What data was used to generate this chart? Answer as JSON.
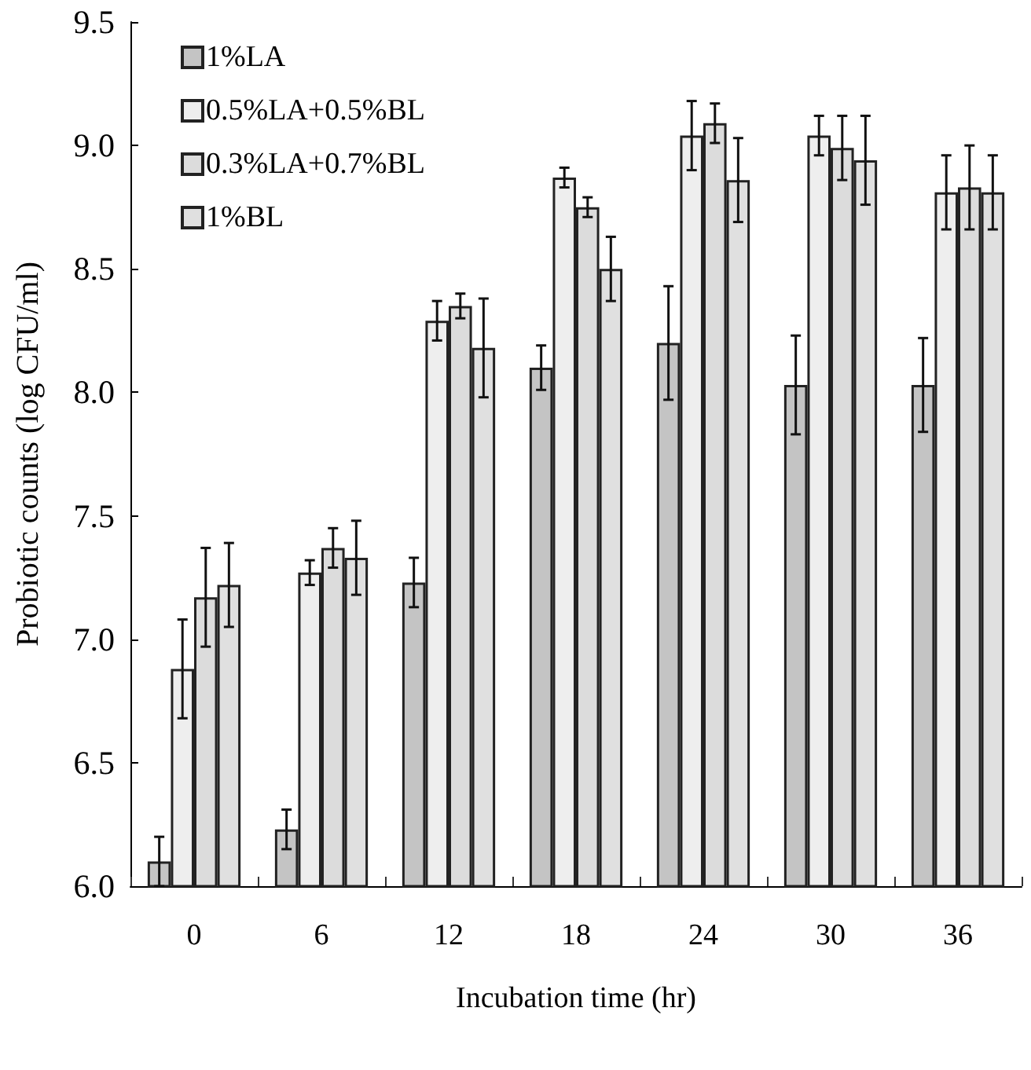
{
  "chart_data": {
    "type": "bar",
    "xlabel": "Incubation time (hr)",
    "ylabel": "Probiotic counts (log CFU/ml)",
    "categories": [
      "0",
      "6",
      "12",
      "18",
      "24",
      "30",
      "36"
    ],
    "series": [
      {
        "name": "1%LA",
        "color": "#c4c4c4",
        "values": [
          6.1,
          6.23,
          7.23,
          8.1,
          8.2,
          8.03,
          8.03
        ],
        "errors": [
          0.1,
          0.08,
          0.1,
          0.09,
          0.23,
          0.2,
          0.19
        ]
      },
      {
        "name": "0.5%LA+0.5%BL",
        "color": "#eeeeee",
        "values": [
          6.88,
          7.27,
          8.29,
          8.87,
          9.04,
          9.04,
          8.81
        ],
        "errors": [
          0.2,
          0.05,
          0.08,
          0.04,
          0.14,
          0.08,
          0.15
        ]
      },
      {
        "name": "0.3%LA+0.7%BL",
        "color": "#dcdcdc",
        "values": [
          7.17,
          7.37,
          8.35,
          8.75,
          9.09,
          8.99,
          8.83
        ],
        "errors": [
          0.2,
          0.08,
          0.05,
          0.04,
          0.08,
          0.13,
          0.17
        ]
      },
      {
        "name": "1%BL",
        "color": "#e0e0e0",
        "values": [
          7.22,
          7.33,
          8.18,
          8.5,
          8.86,
          8.94,
          8.81
        ],
        "errors": [
          0.17,
          0.15,
          0.2,
          0.13,
          0.17,
          0.18,
          0.15
        ]
      }
    ],
    "ylim": [
      6.0,
      9.5
    ],
    "yticks": [
      {
        "value": 6,
        "label": "6.0"
      },
      6.5,
      {
        "value": 7,
        "label": "7.0"
      },
      7.5,
      {
        "value": 8,
        "label": "8.0"
      },
      8.5,
      {
        "value": 9,
        "label": "9.0"
      },
      9.5
    ],
    "grid": false,
    "legend": "top left"
  }
}
